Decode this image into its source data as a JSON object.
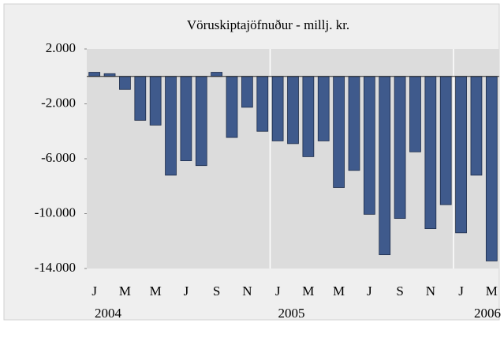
{
  "chart_data": {
    "type": "bar",
    "title": "Vöruskiptajöfnuður - millj. kr.",
    "categories": [
      "J",
      null,
      "M",
      null,
      "M",
      null,
      "J",
      null,
      "S",
      null,
      "N",
      null,
      "J",
      null,
      "M",
      null,
      "M",
      null,
      "J",
      null,
      "S",
      null,
      "N",
      null,
      "J",
      null,
      "M"
    ],
    "years": [
      "2004",
      "2005",
      "2006"
    ],
    "values": [
      300,
      200,
      -950,
      -3200,
      -3550,
      -7200,
      -6150,
      -6500,
      300,
      -4450,
      -2250,
      -4000,
      -4700,
      -4900,
      -5850,
      -4700,
      -8100,
      -6850,
      -10050,
      -13000,
      -10350,
      -5500,
      -11100,
      -9350,
      -11400,
      -7200,
      -13450
    ],
    "color": "#3f5a8c",
    "ylim": [
      -14000,
      2000
    ],
    "yticks": [
      {
        "value": 2000,
        "label": "2.000"
      },
      {
        "value": -2000,
        "label": "-2.000"
      },
      {
        "value": -6000,
        "label": "-6.000"
      },
      {
        "value": -10000,
        "label": "-10.000"
      },
      {
        "value": -14000,
        "label": "-14.000"
      }
    ]
  }
}
